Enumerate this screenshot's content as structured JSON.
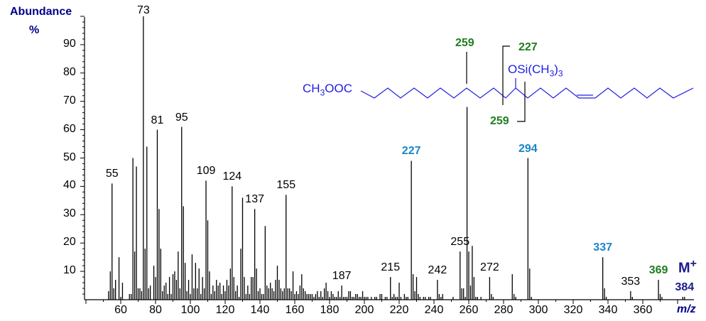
{
  "chart_data": {
    "type": "bar",
    "title": "",
    "xlabel": "m/z",
    "ylabel": "Abundance %",
    "xlim": [
      40,
      385
    ],
    "ylim": [
      0,
      100
    ],
    "x_ticks": [
      60,
      80,
      100,
      120,
      140,
      160,
      180,
      200,
      220,
      240,
      260,
      280,
      300,
      320,
      340,
      360
    ],
    "y_ticks": [
      10,
      20,
      30,
      40,
      50,
      60,
      70,
      80,
      90
    ],
    "peaks": [
      [
        53,
        3
      ],
      [
        54,
        10
      ],
      [
        55,
        41
      ],
      [
        56,
        4
      ],
      [
        57,
        7
      ],
      [
        59,
        15
      ],
      [
        60,
        1
      ],
      [
        61,
        6
      ],
      [
        65,
        2
      ],
      [
        66,
        2
      ],
      [
        67,
        50
      ],
      [
        68,
        17
      ],
      [
        69,
        47
      ],
      [
        70,
        4
      ],
      [
        71,
        4
      ],
      [
        72,
        3
      ],
      [
        73,
        100
      ],
      [
        74,
        18
      ],
      [
        75,
        54
      ],
      [
        76,
        4
      ],
      [
        77,
        5
      ],
      [
        79,
        12
      ],
      [
        80,
        8
      ],
      [
        81,
        60
      ],
      [
        82,
        32
      ],
      [
        83,
        18
      ],
      [
        84,
        3
      ],
      [
        85,
        5
      ],
      [
        86,
        6
      ],
      [
        87,
        2
      ],
      [
        88,
        8
      ],
      [
        89,
        2
      ],
      [
        90,
        9
      ],
      [
        91,
        10
      ],
      [
        92,
        7
      ],
      [
        93,
        17
      ],
      [
        94,
        4
      ],
      [
        95,
        61
      ],
      [
        96,
        33
      ],
      [
        97,
        13
      ],
      [
        98,
        3
      ],
      [
        99,
        7
      ],
      [
        100,
        2
      ],
      [
        101,
        16
      ],
      [
        102,
        4
      ],
      [
        103,
        13
      ],
      [
        104,
        4
      ],
      [
        105,
        11
      ],
      [
        106,
        2
      ],
      [
        107,
        8
      ],
      [
        108,
        4
      ],
      [
        109,
        42
      ],
      [
        110,
        28
      ],
      [
        111,
        10
      ],
      [
        112,
        2
      ],
      [
        113,
        5
      ],
      [
        114,
        3
      ],
      [
        115,
        7
      ],
      [
        116,
        5
      ],
      [
        117,
        6
      ],
      [
        118,
        2
      ],
      [
        119,
        5
      ],
      [
        120,
        3
      ],
      [
        121,
        7
      ],
      [
        122,
        5
      ],
      [
        123,
        11
      ],
      [
        124,
        40
      ],
      [
        125,
        8
      ],
      [
        126,
        3
      ],
      [
        127,
        5
      ],
      [
        128,
        1
      ],
      [
        129,
        18
      ],
      [
        130,
        36
      ],
      [
        131,
        8
      ],
      [
        132,
        2
      ],
      [
        133,
        5
      ],
      [
        134,
        2
      ],
      [
        135,
        8
      ],
      [
        136,
        8
      ],
      [
        137,
        32
      ],
      [
        138,
        11
      ],
      [
        139,
        3
      ],
      [
        140,
        4
      ],
      [
        141,
        2
      ],
      [
        142,
        2
      ],
      [
        143,
        26
      ],
      [
        144,
        5
      ],
      [
        145,
        4
      ],
      [
        146,
        6
      ],
      [
        147,
        4
      ],
      [
        148,
        3
      ],
      [
        149,
        7
      ],
      [
        150,
        12
      ],
      [
        151,
        7
      ],
      [
        152,
        4
      ],
      [
        153,
        3
      ],
      [
        154,
        4
      ],
      [
        155,
        37
      ],
      [
        156,
        4
      ],
      [
        157,
        4
      ],
      [
        158,
        3
      ],
      [
        159,
        10
      ],
      [
        160,
        2
      ],
      [
        161,
        3
      ],
      [
        162,
        2
      ],
      [
        163,
        5
      ],
      [
        164,
        9
      ],
      [
        165,
        4
      ],
      [
        166,
        3
      ],
      [
        167,
        2
      ],
      [
        168,
        2
      ],
      [
        169,
        2
      ],
      [
        170,
        2
      ],
      [
        171,
        1
      ],
      [
        172,
        2
      ],
      [
        173,
        3
      ],
      [
        174,
        1
      ],
      [
        175,
        3
      ],
      [
        176,
        1
      ],
      [
        177,
        4
      ],
      [
        178,
        6
      ],
      [
        179,
        3
      ],
      [
        180,
        1
      ],
      [
        181,
        3
      ],
      [
        182,
        2
      ],
      [
        183,
        1
      ],
      [
        184,
        1
      ],
      [
        185,
        3
      ],
      [
        186,
        1
      ],
      [
        187,
        5
      ],
      [
        188,
        1
      ],
      [
        189,
        1
      ],
      [
        190,
        1
      ],
      [
        191,
        3
      ],
      [
        192,
        3
      ],
      [
        193,
        1
      ],
      [
        194,
        1
      ],
      [
        195,
        2
      ],
      [
        196,
        2
      ],
      [
        197,
        1
      ],
      [
        198,
        1
      ],
      [
        199,
        3
      ],
      [
        200,
        1
      ],
      [
        201,
        1
      ],
      [
        202,
        1
      ],
      [
        204,
        1
      ],
      [
        206,
        1
      ],
      [
        207,
        1
      ],
      [
        209,
        2
      ],
      [
        210,
        2
      ],
      [
        212,
        1
      ],
      [
        213,
        1
      ],
      [
        215,
        8
      ],
      [
        216,
        1
      ],
      [
        217,
        2
      ],
      [
        218,
        1
      ],
      [
        219,
        1
      ],
      [
        220,
        6
      ],
      [
        221,
        1
      ],
      [
        223,
        2
      ],
      [
        224,
        1
      ],
      [
        225,
        1
      ],
      [
        227,
        49
      ],
      [
        228,
        9
      ],
      [
        229,
        3
      ],
      [
        230,
        8
      ],
      [
        231,
        2
      ],
      [
        232,
        1
      ],
      [
        234,
        1
      ],
      [
        235,
        1
      ],
      [
        237,
        1
      ],
      [
        238,
        1
      ],
      [
        242,
        7
      ],
      [
        243,
        2
      ],
      [
        244,
        1
      ],
      [
        245,
        2
      ],
      [
        251,
        1
      ],
      [
        255,
        17
      ],
      [
        256,
        4
      ],
      [
        257,
        4
      ],
      [
        258,
        1
      ],
      [
        259,
        68
      ],
      [
        260,
        17
      ],
      [
        261,
        5
      ],
      [
        262,
        19
      ],
      [
        263,
        8
      ],
      [
        264,
        1
      ],
      [
        265,
        1
      ],
      [
        267,
        1
      ],
      [
        272,
        8
      ],
      [
        273,
        2
      ],
      [
        274,
        1
      ],
      [
        285,
        9
      ],
      [
        286,
        2
      ],
      [
        287,
        1
      ],
      [
        294,
        50
      ],
      [
        295,
        11
      ],
      [
        296,
        1
      ],
      [
        337,
        15
      ],
      [
        338,
        4
      ],
      [
        339,
        1
      ],
      [
        353,
        3
      ],
      [
        354,
        1
      ],
      [
        369,
        7
      ],
      [
        370,
        2
      ],
      [
        371,
        1
      ],
      [
        383,
        1
      ],
      [
        384,
        1
      ]
    ],
    "peak_labels": [
      {
        "mz": 55,
        "text": "55",
        "color": "black"
      },
      {
        "mz": 73,
        "text": "73",
        "color": "black"
      },
      {
        "mz": 81,
        "text": "81",
        "color": "black"
      },
      {
        "mz": 95,
        "text": "95",
        "color": "black"
      },
      {
        "mz": 109,
        "text": "109",
        "color": "black"
      },
      {
        "mz": 124,
        "text": "124",
        "color": "black"
      },
      {
        "mz": 137,
        "text": "137",
        "color": "black"
      },
      {
        "mz": 155,
        "text": "155",
        "color": "black"
      },
      {
        "mz": 187,
        "text": "187",
        "color": "black"
      },
      {
        "mz": 215,
        "text": "215",
        "color": "black"
      },
      {
        "mz": 227,
        "text": "227",
        "color": "blue"
      },
      {
        "mz": 242,
        "text": "242",
        "color": "black"
      },
      {
        "mz": 255,
        "text": "255",
        "color": "black"
      },
      {
        "mz": 259,
        "text": "259",
        "color": "green"
      },
      {
        "mz": 272,
        "text": "272",
        "color": "black"
      },
      {
        "mz": 294,
        "text": "294",
        "color": "blue"
      },
      {
        "mz": 337,
        "text": "337",
        "color": "blue"
      },
      {
        "mz": 353,
        "text": "353",
        "color": "black"
      },
      {
        "mz": 369,
        "text": "369",
        "color": "green"
      },
      {
        "mz": 384,
        "text": "384",
        "color": "navy"
      }
    ],
    "annotations": [
      "M+",
      "CH3OOC-(CH2)7-CH(OSi(CH3)3)... structure",
      "227",
      "259",
      "259"
    ]
  },
  "axis": {
    "ylabel_line1": "Abundance",
    "ylabel_line2": "%",
    "xlabel": "m/z"
  },
  "structure": {
    "ester_group": "CH3OOC",
    "tms_group": "OSi(CH3)3",
    "cleavage_labels": [
      "259",
      "227",
      "259"
    ]
  },
  "molecular_ion": {
    "label": "M",
    "charge": "+",
    "mz": "384"
  },
  "colors": {
    "axis_text_navy": "#00008b",
    "blue_label": "#1a86c7",
    "green_label": "#1e7d1e",
    "structure_blue": "#2020e0"
  }
}
